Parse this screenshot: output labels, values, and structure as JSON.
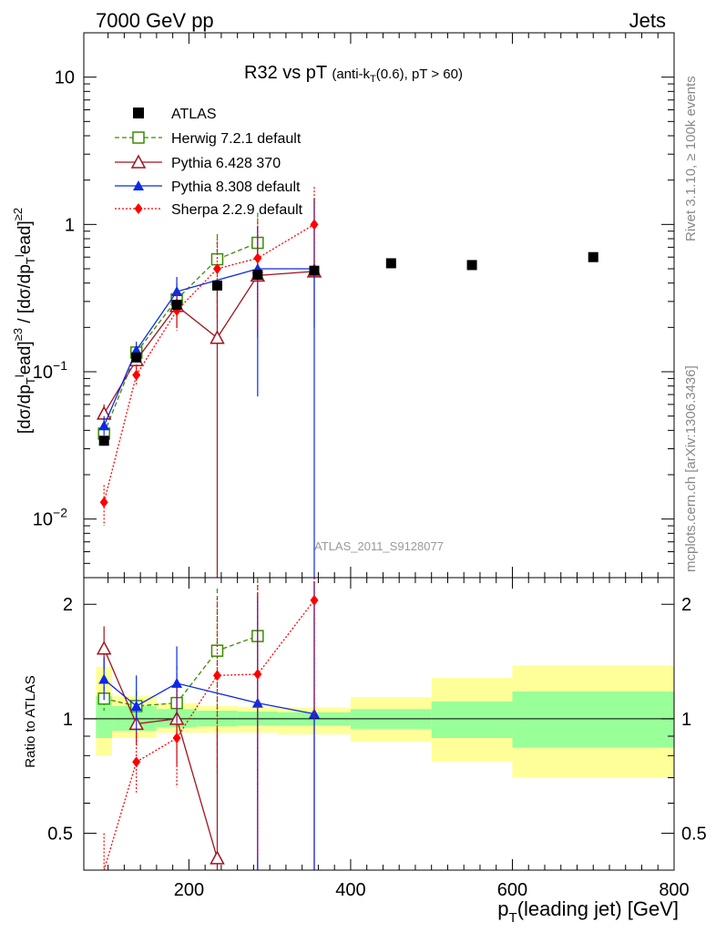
{
  "header": {
    "left": "7000 GeV pp",
    "right": "Jets"
  },
  "side_labels": {
    "rivet": "Rivet 3.1.10, ≥ 100k events",
    "mcplots": "mcplots.cern.ch [arXiv:1306.3436]"
  },
  "chart_data": {
    "type": "scatter",
    "title": "R32 vs pT (anti-k_T(0.6), pT > 60)",
    "analysis_label": "ATLAS_2011_S9128077",
    "xlabel": "p_T(leading jet) [GeV]",
    "ylabel": "[dσ/dp_T^lead]^≥3 / [dσ/dp_T^lead]^≥2",
    "ratio_ylabel": "Ratio to ATLAS",
    "xlim": [
      70,
      800
    ],
    "ylim": [
      0.004,
      20
    ],
    "yscale": "log",
    "ratio_ylim": [
      0.4,
      2.35
    ],
    "x_ticks": [
      200,
      400,
      600,
      800
    ],
    "y_ticks": [
      {
        "value": 0.01,
        "base": "10",
        "exp": "−2"
      },
      {
        "value": 0.1,
        "base": "10",
        "exp": "−1"
      },
      {
        "value": 1,
        "base": "1",
        "exp": ""
      },
      {
        "value": 10,
        "base": "10",
        "exp": ""
      }
    ],
    "ratio_ticks": [
      0.5,
      1,
      2
    ],
    "legend_position": "top-left",
    "series": [
      {
        "name": "ATLAS",
        "color": "#000000",
        "marker": "square-filled",
        "line": "none",
        "points": [
          {
            "x": 95,
            "y": 0.034
          },
          {
            "x": 135,
            "y": 0.125
          },
          {
            "x": 185,
            "y": 0.285
          },
          {
            "x": 235,
            "y": 0.385
          },
          {
            "x": 285,
            "y": 0.455
          },
          {
            "x": 355,
            "y": 0.485
          },
          {
            "x": 450,
            "y": 0.545
          },
          {
            "x": 550,
            "y": 0.53
          },
          {
            "x": 700,
            "y": 0.6
          }
        ]
      },
      {
        "name": "Herwig 7.2.1 default",
        "color": "#3a8c00",
        "marker": "square-open",
        "line": "dashed",
        "points": [
          {
            "x": 95,
            "y": 0.038,
            "ylo": 0.033,
            "yhi": 0.044,
            "r": 1.13,
            "rlo": 1.05,
            "rhi": 1.22
          },
          {
            "x": 135,
            "y": 0.135,
            "ylo": 0.12,
            "yhi": 0.15,
            "r": 1.08,
            "rlo": 0.98,
            "rhi": 1.18
          },
          {
            "x": 185,
            "y": 0.31,
            "ylo": 0.23,
            "yhi": 0.4,
            "r": 1.1,
            "rlo": 0.85,
            "rhi": 1.38
          },
          {
            "x": 235,
            "y": 0.58,
            "ylo": 0.22,
            "yhi": 0.86,
            "r": 1.51,
            "rlo": 0.72,
            "rhi": 2.2
          },
          {
            "x": 285,
            "y": 0.75,
            "ylo": 0.28,
            "yhi": 1.2,
            "r": 1.65,
            "rlo": 0.6,
            "rhi": 2.35
          }
        ]
      },
      {
        "name": "Pythia 6.428 370",
        "color": "#a0141e",
        "marker": "triangle-open",
        "line": "solid",
        "points": [
          {
            "x": 95,
            "y": 0.052,
            "ylo": 0.045,
            "yhi": 0.06,
            "r": 1.53,
            "rlo": 1.35,
            "rhi": 1.75
          },
          {
            "x": 135,
            "y": 0.12,
            "ylo": 0.105,
            "yhi": 0.14,
            "r": 0.97,
            "rlo": 0.85,
            "rhi": 1.12
          },
          {
            "x": 185,
            "y": 0.28,
            "ylo": 0.2,
            "yhi": 0.36,
            "r": 1.0,
            "rlo": 0.75,
            "rhi": 1.28
          },
          {
            "x": 235,
            "y": 0.17,
            "ylo": 0.003,
            "yhi": 0.36,
            "r": 0.43,
            "rlo": 0.3,
            "rhi": 0.95
          },
          {
            "x": 285,
            "y": 0.45,
            "ylo": 0.17,
            "yhi": 0.96,
            "r": null,
            "rlo": 0.3,
            "rhi": 2.15
          },
          {
            "x": 355,
            "y": 0.48,
            "ylo": 0.2,
            "yhi": 1.5,
            "r": null,
            "rlo": 0.3,
            "rhi": 2.3
          }
        ]
      },
      {
        "name": "Pythia 8.308 default",
        "color": "#0a2ae8",
        "marker": "triangle-filled",
        "line": "solid",
        "points": [
          {
            "x": 95,
            "y": 0.043,
            "ylo": 0.037,
            "yhi": 0.05,
            "r": 1.27,
            "rlo": 1.12,
            "rhi": 1.45
          },
          {
            "x": 135,
            "y": 0.14,
            "ylo": 0.12,
            "yhi": 0.16,
            "r": 1.08,
            "rlo": 0.93,
            "rhi": 1.3
          },
          {
            "x": 185,
            "y": 0.35,
            "ylo": 0.28,
            "yhi": 0.44,
            "r": 1.24,
            "rlo": 0.98,
            "rhi": 1.55
          },
          {
            "x": 285,
            "y": 0.5,
            "ylo": 0.068,
            "yhi": 0.98,
            "r": 1.1,
            "rlo": 0.3,
            "rhi": 2.1
          },
          {
            "x": 355,
            "y": 0.5,
            "ylo": 0.003,
            "yhi": 1.5,
            "r": 1.03,
            "rlo": 0.3,
            "rhi": 2.3
          }
        ]
      },
      {
        "name": "Sherpa 2.2.9 default",
        "color": "#ff0000",
        "marker": "diamond-filled",
        "line": "dotted",
        "points": [
          {
            "x": 95,
            "y": 0.013,
            "ylo": 0.009,
            "yhi": 0.017,
            "r": 0.38,
            "rlo": 0.3,
            "rhi": 0.5
          },
          {
            "x": 135,
            "y": 0.095,
            "ylo": 0.08,
            "yhi": 0.112,
            "r": 0.77,
            "rlo": 0.64,
            "rhi": 0.92
          },
          {
            "x": 185,
            "y": 0.26,
            "ylo": 0.19,
            "yhi": 0.34,
            "r": 0.89,
            "rlo": 0.66,
            "rhi": 1.2
          },
          {
            "x": 235,
            "y": 0.5,
            "ylo": 0.24,
            "yhi": 0.8,
            "r": 1.3,
            "rlo": 0.75,
            "rhi": 2.08
          },
          {
            "x": 285,
            "y": 0.59,
            "ylo": 0.19,
            "yhi": 1.1,
            "r": 1.31,
            "rlo": 0.42,
            "rhi": 2.3
          },
          {
            "x": 355,
            "y": 1.0,
            "ylo": 0.5,
            "yhi": 1.8,
            "r": 2.05,
            "rlo": 1.0,
            "rhi": 2.35
          }
        ]
      }
    ],
    "uncertainty_bands": [
      {
        "x0": 85,
        "x1": 105,
        "green": [
          0.89,
          1.15
        ],
        "yellow": [
          0.8,
          1.37
        ]
      },
      {
        "x0": 105,
        "x1": 160,
        "green": [
          0.93,
          1.08
        ],
        "yellow": [
          0.89,
          1.15
        ]
      },
      {
        "x0": 160,
        "x1": 210,
        "green": [
          0.95,
          1.06
        ],
        "yellow": [
          0.92,
          1.1
        ]
      },
      {
        "x0": 210,
        "x1": 260,
        "green": [
          0.955,
          1.05
        ],
        "yellow": [
          0.92,
          1.08
        ]
      },
      {
        "x0": 260,
        "x1": 310,
        "green": [
          0.96,
          1.045
        ],
        "yellow": [
          0.92,
          1.075
        ]
      },
      {
        "x0": 310,
        "x1": 400,
        "green": [
          0.96,
          1.04
        ],
        "yellow": [
          0.91,
          1.07
        ]
      },
      {
        "x0": 400,
        "x1": 500,
        "green": [
          0.94,
          1.06
        ],
        "yellow": [
          0.87,
          1.14
        ]
      },
      {
        "x0": 500,
        "x1": 600,
        "green": [
          0.89,
          1.11
        ],
        "yellow": [
          0.77,
          1.28
        ]
      },
      {
        "x0": 600,
        "x1": 800,
        "green": [
          0.84,
          1.18
        ],
        "yellow": [
          0.7,
          1.38
        ]
      }
    ]
  }
}
